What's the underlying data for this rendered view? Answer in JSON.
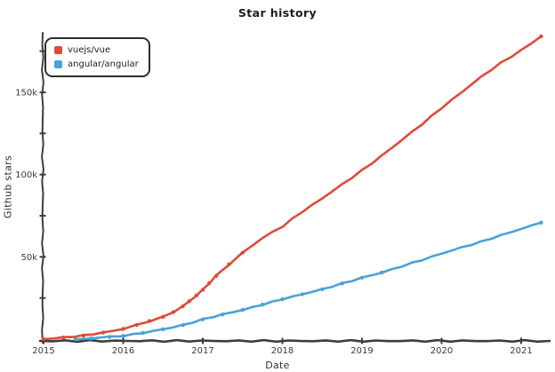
{
  "chart_data": {
    "type": "line",
    "title": "Star history",
    "xlabel": "Date",
    "ylabel": "Github stars",
    "y_unit": "thousands of GitHub stars",
    "x_axis": {
      "min": 2015,
      "max": 2021.45,
      "ticks": [
        2015,
        2016,
        2017,
        2018,
        2019,
        2020,
        2021
      ],
      "tick_labels": [
        "2015",
        "2016",
        "2017",
        "2018",
        "2019",
        "2020",
        "2021"
      ]
    },
    "y_axis": {
      "min": 0,
      "max": 186,
      "minor_ticks": [
        25,
        50,
        75,
        100,
        125,
        150,
        175
      ],
      "labeled_ticks": [
        {
          "value": 50,
          "label": "50k"
        },
        {
          "value": 100,
          "label": "100k"
        },
        {
          "value": 150,
          "label": "150k"
        }
      ],
      "grid": false
    },
    "legend_position": "top-left",
    "series": [
      {
        "name": "vuejs/vue",
        "color": "#dd4b39",
        "markers_until": 2017.6,
        "points": [
          [
            2015.0,
            0
          ],
          [
            2015.25,
            1
          ],
          [
            2015.5,
            2.2
          ],
          [
            2015.75,
            4
          ],
          [
            2016.0,
            6.2
          ],
          [
            2016.17,
            8.6
          ],
          [
            2016.33,
            11
          ],
          [
            2016.5,
            13.5
          ],
          [
            2016.63,
            16.5
          ],
          [
            2016.75,
            20
          ],
          [
            2016.83,
            23
          ],
          [
            2016.92,
            26.5
          ],
          [
            2017.0,
            30
          ],
          [
            2017.08,
            34
          ],
          [
            2017.17,
            38.5
          ],
          [
            2017.33,
            45.5
          ],
          [
            2017.5,
            52.5
          ],
          [
            2017.75,
            61.5
          ],
          [
            2018.0,
            68.5
          ],
          [
            2018.25,
            77.5
          ],
          [
            2018.5,
            85.5
          ],
          [
            2018.75,
            94
          ],
          [
            2019.0,
            102.5
          ],
          [
            2019.25,
            111.5
          ],
          [
            2019.5,
            121
          ],
          [
            2019.75,
            130.5
          ],
          [
            2020.0,
            140.5
          ],
          [
            2020.25,
            150
          ],
          [
            2020.5,
            159.5
          ],
          [
            2020.75,
            168
          ],
          [
            2021.0,
            175.5
          ],
          [
            2021.25,
            184
          ]
        ]
      },
      {
        "name": "angular/angular",
        "color": "#4aa2d8",
        "markers_until": 2019.3,
        "points": [
          [
            2015.4,
            0
          ],
          [
            2015.6,
            0.5
          ],
          [
            2015.83,
            1.4
          ],
          [
            2016.0,
            2
          ],
          [
            2016.25,
            3.8
          ],
          [
            2016.5,
            6
          ],
          [
            2016.75,
            8.5
          ],
          [
            2017.0,
            12
          ],
          [
            2017.25,
            15
          ],
          [
            2017.5,
            17.8
          ],
          [
            2017.75,
            21
          ],
          [
            2018.0,
            24.3
          ],
          [
            2018.25,
            27.3
          ],
          [
            2018.5,
            30.3
          ],
          [
            2018.75,
            33.8
          ],
          [
            2019.0,
            37.3
          ],
          [
            2019.25,
            40.5
          ],
          [
            2019.5,
            44.3
          ],
          [
            2019.75,
            48.1
          ],
          [
            2020.0,
            52
          ],
          [
            2020.25,
            55.7
          ],
          [
            2020.5,
            59.2
          ],
          [
            2020.75,
            63.2
          ],
          [
            2021.0,
            67
          ],
          [
            2021.25,
            70.8
          ]
        ]
      }
    ]
  }
}
